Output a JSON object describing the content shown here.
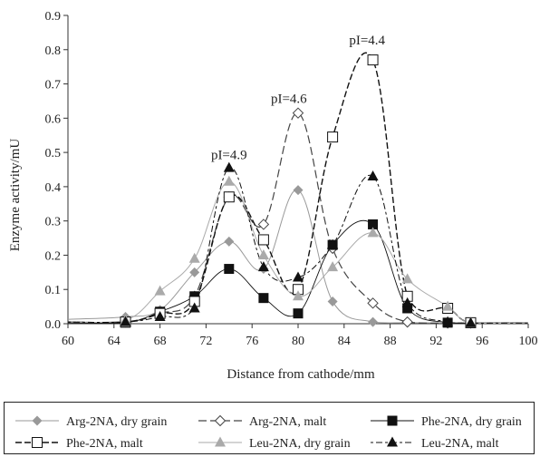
{
  "chart_data": {
    "type": "line",
    "title": "",
    "xlabel": "Distance from cathode/mm",
    "ylabel": "Enzyme activity/mU",
    "xlim": [
      60,
      100
    ],
    "ylim": [
      0,
      0.9
    ],
    "x_ticks": [
      "60",
      "64",
      "68",
      "72",
      "76",
      "80",
      "84",
      "88",
      "92",
      "96",
      "100"
    ],
    "y_ticks": [
      "0.0",
      "0.1",
      "0.2",
      "0.3",
      "0.4",
      "0.5",
      "0.6",
      "0.7",
      "0.8",
      "0.9"
    ],
    "grid": false,
    "legend_position": "bottom",
    "annotations": [
      {
        "text": "pI=4.9",
        "x": 74.0,
        "y": 0.48
      },
      {
        "text": "pI=4.6",
        "x": 79.2,
        "y": 0.645
      },
      {
        "text": "pI=4.4",
        "x": 86.0,
        "y": 0.815
      }
    ],
    "series": [
      {
        "name": "Arg-2NA, dry grain",
        "marker": "diamond-filled",
        "dash": "solid",
        "color": "#999999",
        "width": 1.0,
        "x": [
          60,
          65,
          68,
          71,
          74,
          77,
          80,
          83,
          86.5,
          89.5,
          93,
          95,
          100
        ],
        "y": [
          0.013,
          0.02,
          0.04,
          0.15,
          0.24,
          0.16,
          0.39,
          0.065,
          0.005,
          0.003,
          0.002,
          0.002,
          0.002
        ]
      },
      {
        "name": "Arg-2NA, malt",
        "marker": "diamond-open",
        "dash": "long-dash",
        "color": "#444444",
        "width": 1.2,
        "x": [
          60,
          65,
          68,
          71,
          74,
          77,
          80,
          83,
          86.5,
          89.5,
          93,
          95,
          100
        ],
        "y": [
          0.005,
          0.005,
          0.03,
          0.08,
          0.37,
          0.29,
          0.615,
          0.22,
          0.06,
          0.005,
          0.002,
          0.002,
          0.002
        ]
      },
      {
        "name": "Phe-2NA, dry grain",
        "marker": "square-filled",
        "dash": "solid",
        "color": "#111111",
        "width": 0.9,
        "x": [
          60,
          65,
          68,
          71,
          74,
          77,
          80,
          83,
          86.5,
          89.5,
          93,
          95,
          100
        ],
        "y": [
          0.003,
          0.003,
          0.035,
          0.08,
          0.16,
          0.075,
          0.03,
          0.23,
          0.29,
          0.045,
          0.003,
          0.002,
          0.002
        ]
      },
      {
        "name": "Phe-2NA, malt",
        "marker": "square-open",
        "dash": "dash",
        "color": "#111111",
        "width": 1.4,
        "x": [
          60,
          65,
          68,
          71,
          74,
          77,
          80,
          83,
          86.5,
          89.5,
          93,
          95,
          100
        ],
        "y": [
          0.005,
          0.005,
          0.03,
          0.065,
          0.37,
          0.245,
          0.1,
          0.545,
          0.77,
          0.08,
          0.045,
          0.003,
          0.002
        ]
      },
      {
        "name": "Leu-2NA, dry grain",
        "marker": "triangle-filled",
        "dash": "solid",
        "color": "#aaaaaa",
        "width": 1.0,
        "x": [
          60,
          65,
          68,
          71,
          74,
          77,
          80,
          83,
          86.5,
          89.5,
          93,
          95,
          100
        ],
        "y": [
          0.005,
          0.01,
          0.095,
          0.19,
          0.415,
          0.2,
          0.08,
          0.165,
          0.265,
          0.13,
          0.05,
          0.003,
          0.002
        ]
      },
      {
        "name": "Leu-2NA, malt",
        "marker": "triangle-filled",
        "dash": "dot-dash",
        "color": "#111111",
        "width": 1.0,
        "x": [
          60,
          65,
          68,
          71,
          74,
          77,
          80,
          83,
          86.5,
          89.5,
          93,
          95,
          100
        ],
        "y": [
          0.005,
          0.005,
          0.02,
          0.045,
          0.455,
          0.165,
          0.135,
          0.23,
          0.43,
          0.06,
          0.005,
          0.002,
          0.002
        ]
      }
    ]
  }
}
